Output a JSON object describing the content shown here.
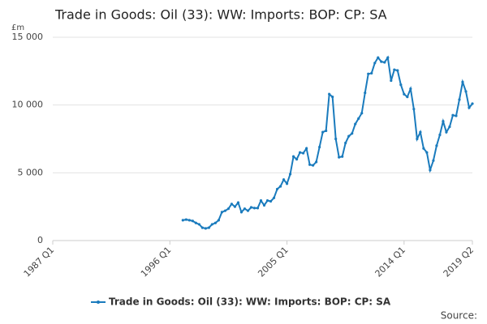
{
  "chart_data": {
    "type": "line",
    "title": "Trade in Goods: Oil (33): WW: Imports: BOP: CP: SA",
    "y_unit": "£m",
    "source": "Source:",
    "categories": [
      "1987 Q1",
      null,
      null,
      null,
      null,
      null,
      null,
      null,
      null,
      null,
      null,
      null,
      null,
      null,
      null,
      null,
      null,
      null,
      null,
      null,
      null,
      null,
      null,
      null,
      null,
      null,
      null,
      null,
      null,
      null,
      null,
      null,
      null,
      null,
      null,
      null,
      "1996 Q1",
      null,
      null,
      null,
      null,
      null,
      null,
      null,
      null,
      null,
      null,
      null,
      null,
      null,
      null,
      null,
      null,
      null,
      null,
      null,
      null,
      null,
      null,
      null,
      null,
      null,
      null,
      null,
      null,
      null,
      null,
      null,
      null,
      null,
      null,
      null,
      "2005 Q1",
      null,
      null,
      null,
      null,
      null,
      null,
      null,
      null,
      null,
      null,
      null,
      null,
      null,
      null,
      null,
      null,
      null,
      null,
      null,
      null,
      null,
      null,
      null,
      null,
      null,
      null,
      null,
      null,
      null,
      null,
      null,
      null,
      null,
      null,
      null,
      "2014 Q1",
      null,
      null,
      null,
      null,
      null,
      null,
      null,
      null,
      null,
      null,
      null,
      null,
      null,
      null,
      null,
      null,
      null,
      null,
      null,
      null,
      "2019 Q2"
    ],
    "series": [
      {
        "name": "Trade in Goods: Oil (33): WW: Imports: BOP: CP: SA",
        "color": "#1a7bbd",
        "values": [
          null,
          null,
          null,
          null,
          null,
          null,
          null,
          null,
          null,
          null,
          null,
          null,
          null,
          null,
          null,
          null,
          null,
          null,
          null,
          null,
          null,
          null,
          null,
          null,
          null,
          null,
          null,
          null,
          null,
          null,
          null,
          null,
          null,
          null,
          null,
          null,
          null,
          null,
          null,
          null,
          1500,
          1550,
          1500,
          1450,
          1300,
          1200,
          950,
          900,
          950,
          1200,
          1300,
          1500,
          2100,
          2200,
          2350,
          2700,
          2500,
          2800,
          2100,
          2350,
          2200,
          2450,
          2400,
          2400,
          2950,
          2600,
          2950,
          2900,
          3150,
          3800,
          4000,
          4500,
          4200,
          4900,
          6200,
          6000,
          6500,
          6450,
          6800,
          5600,
          5550,
          5800,
          6900,
          8000,
          8100,
          10800,
          10600,
          7500,
          6150,
          6200,
          7200,
          7700,
          7900,
          8600,
          9000,
          9400,
          10900,
          12300,
          12350,
          13100,
          13500,
          13200,
          13150,
          13500,
          11800,
          12600,
          12550,
          11500,
          10800,
          10600,
          11200,
          9700,
          7500,
          8000,
          6800,
          6500,
          5200,
          5900,
          7000,
          7800,
          8800,
          8000,
          8400,
          9250,
          9200,
          10400,
          11700,
          11000,
          9800,
          10100
        ]
      }
    ],
    "ylim": [
      0,
      15000
    ],
    "yticks": [
      0,
      {
        "value": 5000,
        "label": "5 000"
      },
      {
        "value": 10000,
        "label": "10 000"
      },
      {
        "value": 15000,
        "label": "15 000"
      }
    ],
    "grid": true
  }
}
